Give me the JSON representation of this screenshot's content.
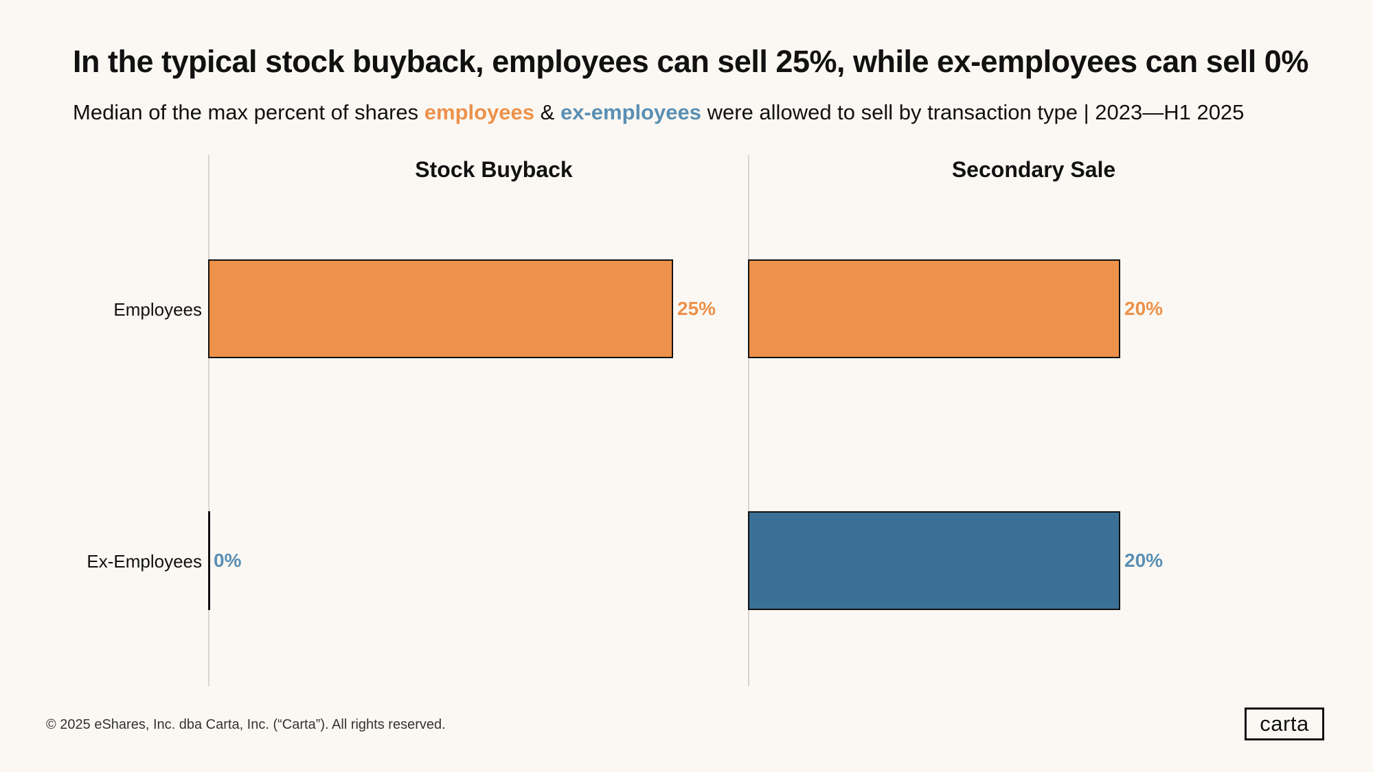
{
  "title": "In the typical stock buyback, employees can sell 25%, while ex-employees can sell 0%",
  "subtitle": {
    "prefix": "Median of the max percent of shares ",
    "employees": "employees",
    "amp": " & ",
    "ex_employees": "ex-employees",
    "suffix": " were allowed to sell by transaction type | 2023—H1 2025"
  },
  "colors": {
    "employees": "#ed914b",
    "ex_employees": "#3b7096",
    "ex_employees_label": "#5a8fb3",
    "background": "#fbf8f3"
  },
  "chart_data": {
    "type": "bar",
    "orientation": "horizontal",
    "categories": [
      "Employees",
      "Ex-Employees"
    ],
    "xlim": [
      0,
      30
    ],
    "grid": false,
    "panels": [
      {
        "title": "Stock Buyback",
        "values": [
          25,
          0
        ],
        "labels": [
          "25%",
          "0%"
        ]
      },
      {
        "title": "Secondary Sale",
        "values": [
          20,
          20
        ],
        "labels": [
          "20%",
          "20%"
        ]
      }
    ]
  },
  "footer": "© 2025 eShares, Inc. dba Carta, Inc. (“Carta”). All rights reserved.",
  "logo_text": "carta"
}
